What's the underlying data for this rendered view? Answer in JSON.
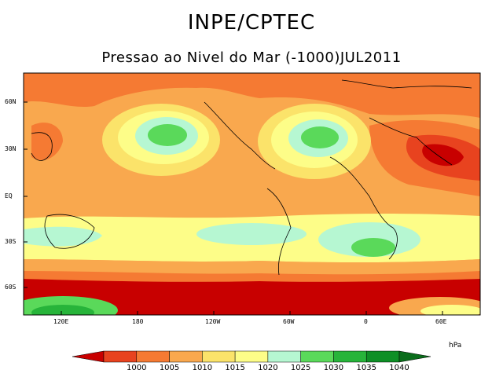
{
  "title": "INPE/CPTEC",
  "subtitle": "Pressao ao Nivel do Mar (-1000)JUL2011",
  "unit": "hPa",
  "latitude_labels": [
    "60N",
    "30N",
    "EQ",
    "30S",
    "60S"
  ],
  "longitude_labels": [
    "120E",
    "180",
    "120W",
    "60W",
    "0",
    "60E"
  ],
  "colorbar": {
    "levels": [
      "1000",
      "1005",
      "1010",
      "1015",
      "1020",
      "1025",
      "1030",
      "1035",
      "1040"
    ],
    "colors": [
      "#c80000",
      "#e8431f",
      "#f57a33",
      "#f9a84e",
      "#fbe36a",
      "#fdfd88",
      "#b6f7d2",
      "#5ad95a",
      "#27b43a",
      "#0e8f26",
      "#0a6d1b"
    ]
  },
  "field_colors": {
    "lt1000": "#c80000",
    "1000_1005": "#e8431f",
    "1005_1010": "#f57a33",
    "1010_1015": "#f9a84e",
    "1015_1020": "#fdfd88",
    "1020_1025": "#b6f7d2",
    "1025_1030": "#5ad95a",
    "1030_1035": "#27b43a"
  }
}
